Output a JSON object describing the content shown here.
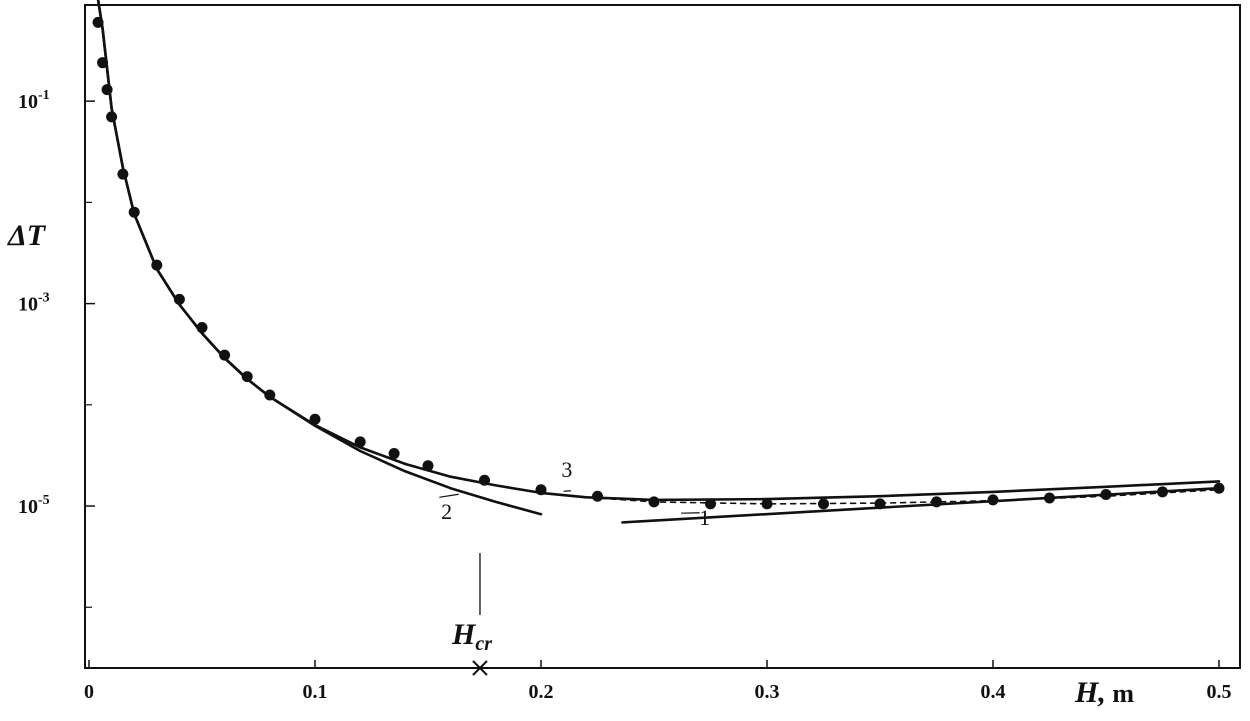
{
  "chart_data": {
    "type": "line",
    "title": "",
    "xlabel": "H, m",
    "ylabel": "ΔT",
    "xlim": [
      0,
      0.5
    ],
    "ylim_log10": [
      -6.6,
      -0.05
    ],
    "y_scale": "log",
    "x_ticks": [
      {
        "value": 0,
        "label": "0"
      },
      {
        "value": 0.1,
        "label": "0.1"
      },
      {
        "value": 0.2,
        "label": "0.2"
      },
      {
        "value": 0.3,
        "label": "0.3"
      },
      {
        "value": 0.4,
        "label": "0.4"
      },
      {
        "value": 0.5,
        "label": "0.5"
      }
    ],
    "y_ticks": [
      {
        "value": 0.1,
        "label": "10-1",
        "base": "10",
        "exp": "-1"
      },
      {
        "value": 0.001,
        "label": "10-3",
        "base": "10",
        "exp": "-3"
      },
      {
        "value": 1e-05,
        "label": "10-5",
        "base": "10",
        "exp": "-5"
      }
    ],
    "y_minor_ticks": [
      0.01,
      0.0001,
      1e-06
    ],
    "grid": false,
    "marker": {
      "label": "Hcr",
      "label_main": "H",
      "label_sub": "cr",
      "x": 0.173
    },
    "series": [
      {
        "name": "1",
        "style": "solid",
        "x": [
          0.236,
          0.5
        ],
        "y": [
          6.9e-06,
          1.5e-05
        ]
      },
      {
        "name": "2",
        "style": "solid",
        "x": [
          0.003,
          0.006,
          0.01,
          0.015,
          0.02,
          0.03,
          0.04,
          0.05,
          0.06,
          0.07,
          0.08,
          0.1,
          0.12,
          0.14,
          0.16,
          0.18,
          0.2
        ],
        "y": [
          1.4,
          0.52,
          0.085,
          0.022,
          0.0077,
          0.0022,
          0.00098,
          0.00051,
          0.00029,
          0.00018,
          0.00012,
          6.2e-05,
          3.5e-05,
          2.2e-05,
          1.5e-05,
          1.1e-05,
          8.3e-06
        ]
      },
      {
        "name": "3",
        "style": "solid",
        "x": [
          0.003,
          0.006,
          0.01,
          0.015,
          0.02,
          0.03,
          0.04,
          0.05,
          0.06,
          0.07,
          0.08,
          0.1,
          0.12,
          0.14,
          0.16,
          0.18,
          0.2,
          0.22,
          0.25,
          0.3,
          0.35,
          0.4,
          0.45,
          0.5
        ],
        "y": [
          1.4,
          0.52,
          0.085,
          0.022,
          0.0077,
          0.0022,
          0.00098,
          0.00051,
          0.00029,
          0.00018,
          0.00012,
          6.3e-05,
          3.8e-05,
          2.6e-05,
          1.95e-05,
          1.6e-05,
          1.35e-05,
          1.22e-05,
          1.15e-05,
          1.17e-05,
          1.25e-05,
          1.38e-05,
          1.55e-05,
          1.75e-05
        ]
      },
      {
        "name": "",
        "style": "dashed",
        "x": [
          0.2,
          0.225,
          0.25,
          0.3,
          0.35,
          0.4,
          0.45,
          0.5
        ],
        "y": [
          1.35e-05,
          1.2e-05,
          1.1e-05,
          1.05e-05,
          1.07e-05,
          1.13e-05,
          1.25e-05,
          1.45e-05
        ]
      }
    ],
    "points": {
      "x": [
        0.003,
        0.004,
        0.006,
        0.008,
        0.01,
        0.015,
        0.02,
        0.03,
        0.04,
        0.05,
        0.06,
        0.07,
        0.08,
        0.1,
        0.12,
        0.135,
        0.15,
        0.175,
        0.2,
        0.225,
        0.25,
        0.275,
        0.3,
        0.325,
        0.35,
        0.375,
        0.4,
        0.425,
        0.45,
        0.475,
        0.5
      ],
      "y": [
        1.6,
        0.6,
        0.24,
        0.13,
        0.07,
        0.019,
        0.008,
        0.0024,
        0.0011,
        0.00058,
        0.00031,
        0.00019,
        0.000125,
        7.2e-05,
        4.3e-05,
        3.3e-05,
        2.5e-05,
        1.8e-05,
        1.45e-05,
        1.25e-05,
        1.1e-05,
        1.05e-05,
        1.05e-05,
        1.05e-05,
        1.05e-05,
        1.1e-05,
        1.15e-05,
        1.2e-05,
        1.3e-05,
        1.38e-05,
        1.5e-05
      ]
    },
    "curve_labels": [
      {
        "text": "1",
        "x": 0.268,
        "y": 8.2e-06
      },
      {
        "text": "2",
        "x": 0.16,
        "y": 8.3e-06
      },
      {
        "text": "3",
        "x": 0.215,
        "y": 1.55e-05
      }
    ]
  }
}
